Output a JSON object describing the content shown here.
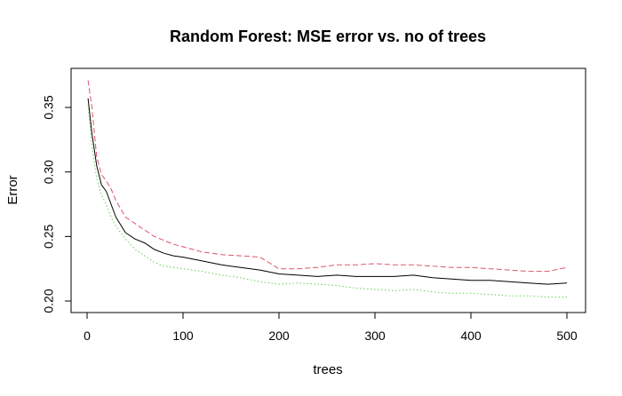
{
  "chart_data": {
    "type": "line",
    "title": "Random Forest: MSE error vs. no of trees",
    "xlabel": "trees",
    "ylabel": "Error",
    "xlim": [
      0,
      500
    ],
    "ylim": [
      0.198,
      0.372
    ],
    "x_ticks": [
      0,
      100,
      200,
      300,
      400,
      500
    ],
    "y_ticks": [
      0.2,
      0.25,
      0.3,
      0.35
    ],
    "x_tick_labels": [
      "0",
      "100",
      "200",
      "300",
      "400",
      "500"
    ],
    "y_tick_labels": [
      "0.20",
      "0.25",
      "0.30",
      "0.35"
    ],
    "grid": false,
    "legend": "none",
    "series": [
      {
        "color": "#000000",
        "dash": "solid",
        "x": [
          1,
          5,
          10,
          15,
          20,
          25,
          30,
          40,
          50,
          60,
          70,
          80,
          90,
          100,
          120,
          140,
          160,
          180,
          200,
          220,
          240,
          260,
          280,
          300,
          320,
          340,
          360,
          380,
          400,
          420,
          440,
          460,
          480,
          500
        ],
        "values": [
          0.357,
          0.33,
          0.305,
          0.29,
          0.285,
          0.275,
          0.265,
          0.253,
          0.248,
          0.245,
          0.24,
          0.237,
          0.235,
          0.234,
          0.231,
          0.228,
          0.226,
          0.224,
          0.221,
          0.22,
          0.219,
          0.22,
          0.219,
          0.219,
          0.219,
          0.22,
          0.218,
          0.217,
          0.216,
          0.216,
          0.215,
          0.214,
          0.213,
          0.214
        ]
      },
      {
        "color": "#DF536B",
        "dash": "dashed",
        "x": [
          1,
          5,
          10,
          15,
          20,
          25,
          30,
          40,
          50,
          60,
          70,
          80,
          90,
          100,
          120,
          140,
          160,
          180,
          200,
          220,
          240,
          260,
          280,
          300,
          320,
          340,
          360,
          380,
          400,
          420,
          440,
          460,
          480,
          500
        ],
        "values": [
          0.371,
          0.35,
          0.312,
          0.298,
          0.293,
          0.287,
          0.278,
          0.265,
          0.26,
          0.255,
          0.25,
          0.247,
          0.244,
          0.242,
          0.238,
          0.236,
          0.235,
          0.234,
          0.225,
          0.225,
          0.226,
          0.228,
          0.228,
          0.229,
          0.228,
          0.228,
          0.227,
          0.226,
          0.226,
          0.225,
          0.224,
          0.223,
          0.223,
          0.226
        ]
      },
      {
        "color": "#61D04F",
        "dash": "dotted",
        "x": [
          1,
          5,
          10,
          15,
          20,
          25,
          30,
          40,
          50,
          60,
          70,
          80,
          90,
          100,
          120,
          140,
          160,
          180,
          200,
          220,
          240,
          260,
          280,
          300,
          320,
          340,
          360,
          380,
          400,
          420,
          440,
          460,
          480,
          500
        ],
        "values": [
          0.352,
          0.32,
          0.295,
          0.282,
          0.275,
          0.265,
          0.258,
          0.248,
          0.24,
          0.235,
          0.23,
          0.227,
          0.226,
          0.225,
          0.223,
          0.22,
          0.218,
          0.215,
          0.213,
          0.214,
          0.213,
          0.212,
          0.21,
          0.209,
          0.208,
          0.209,
          0.207,
          0.206,
          0.206,
          0.205,
          0.204,
          0.204,
          0.203,
          0.203
        ]
      }
    ]
  }
}
